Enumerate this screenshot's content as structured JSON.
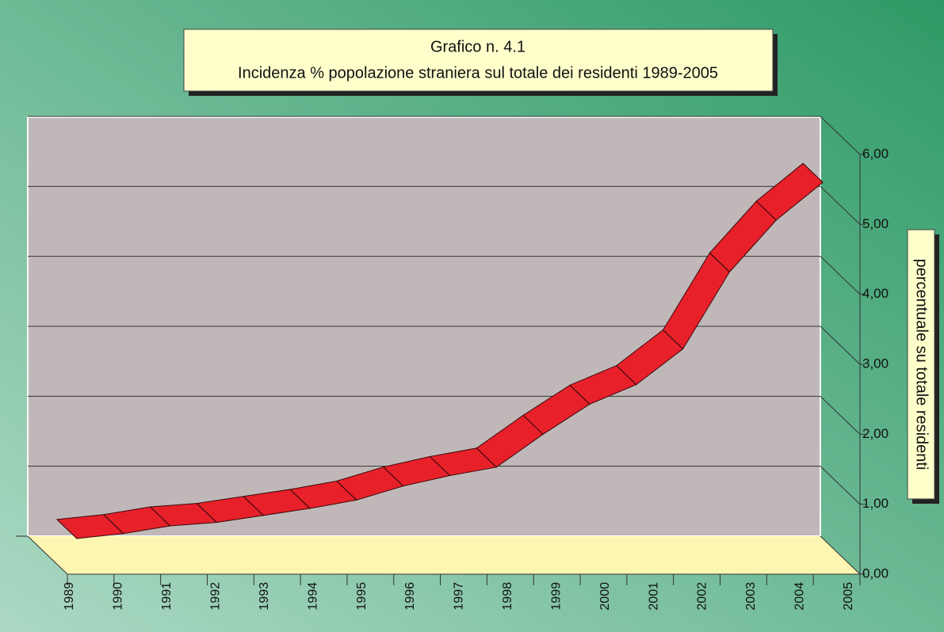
{
  "chart_data": {
    "type": "line3d",
    "title": "Grafico n. 4.1",
    "subtitle": "Incidenza % popolazione straniera sul totale dei residenti 1989-2005",
    "y_label": "percentuale su totale residenti",
    "categories": [
      "1989",
      "1990",
      "1991",
      "1992",
      "1993",
      "1994",
      "1995",
      "1996",
      "1997",
      "1998",
      "1999",
      "2000",
      "2001",
      "2002",
      "2003",
      "2004",
      "2005"
    ],
    "values": [
      0.32,
      0.39,
      0.5,
      0.55,
      0.65,
      0.75,
      0.87,
      1.07,
      1.22,
      1.34,
      1.81,
      2.24,
      2.52,
      3.03,
      4.13,
      4.87,
      5.41
    ],
    "color": "#e8202a",
    "ylim": [
      0,
      6
    ],
    "yticks": [
      {
        "value": 0,
        "label": "0,00"
      },
      {
        "value": 1,
        "label": "1,00"
      },
      {
        "value": 2,
        "label": "2,00"
      },
      {
        "value": 3,
        "label": "3,00"
      },
      {
        "value": 4,
        "label": "4,00"
      },
      {
        "value": 5,
        "label": "5,00"
      },
      {
        "value": 6,
        "label": "6,00"
      }
    ],
    "grid": true
  }
}
